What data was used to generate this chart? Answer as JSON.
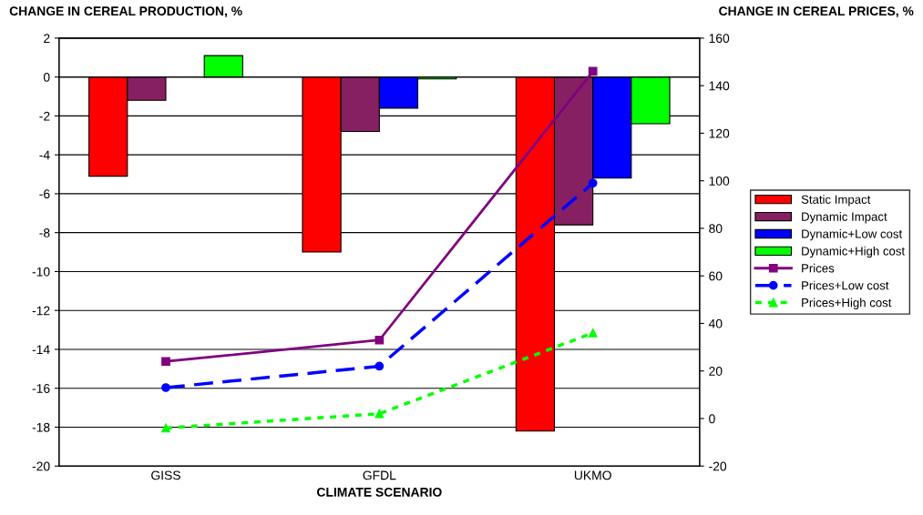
{
  "chart_data": {
    "type": "bar",
    "ylabel": "CHANGE IN CEREAL PRODUCTION, %",
    "y2label": "CHANGE IN CEREAL PRICES, %",
    "xlabel": "CLIMATE SCENARIO",
    "categories": [
      "GISS",
      "GFDL",
      "UKMO"
    ],
    "series": [
      {
        "name": "Static Impact",
        "color": "#ff0000",
        "values": [
          -5.1,
          -9.0,
          -18.2
        ]
      },
      {
        "name": "Dynamic Impact",
        "color": "#862062",
        "values": [
          -1.2,
          -2.8,
          -7.6
        ]
      },
      {
        "name": "Dynamic+Low cost",
        "color": "#0000ff",
        "values": [
          null,
          -1.6,
          -5.2
        ]
      },
      {
        "name": "Dynamic+High cost",
        "color": "#00ff00",
        "values": [
          1.1,
          -0.1,
          -2.4
        ]
      },
      {
        "name": "Prices",
        "type": "line",
        "axis": "y2",
        "color": "#800080",
        "marker": "square",
        "line_style": "solid",
        "values": [
          24,
          33,
          146
        ]
      },
      {
        "name": "Prices+Low cost",
        "type": "line",
        "axis": "y2",
        "color": "#0000ff",
        "marker": "circle",
        "line_style": "dashed",
        "values": [
          13,
          22,
          99
        ]
      },
      {
        "name": "Prices+High cost",
        "type": "line",
        "axis": "y2",
        "color": "#00ff00",
        "marker": "triangle",
        "line_style": "dotted",
        "values": [
          -4,
          2,
          36
        ]
      }
    ],
    "ylim": [
      -20,
      2
    ],
    "yticks": [
      -20,
      -18,
      -16,
      -14,
      -12,
      -10,
      -8,
      -6,
      -4,
      -2,
      0,
      2
    ],
    "y2lim": [
      -20,
      160
    ],
    "y2ticks": [
      -20,
      0,
      20,
      40,
      60,
      80,
      100,
      120,
      140,
      160
    ],
    "grid": "y",
    "legend": "right"
  }
}
